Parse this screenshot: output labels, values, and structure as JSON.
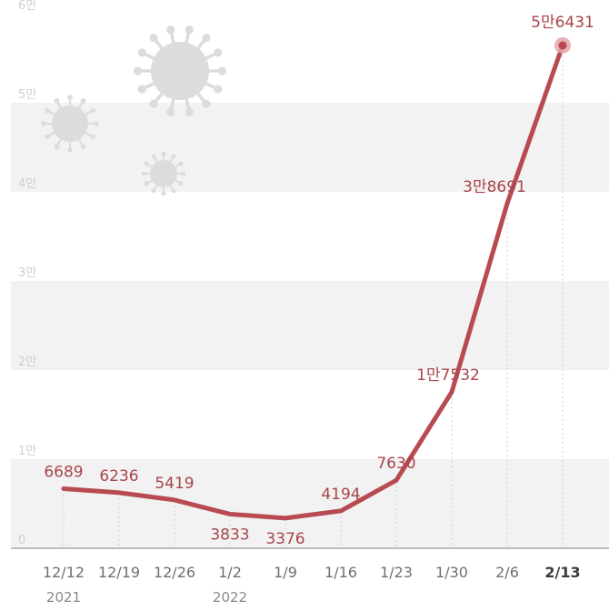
{
  "chart_data": {
    "type": "line",
    "categories": [
      "12/12",
      "12/19",
      "12/26",
      "1/2",
      "1/9",
      "1/16",
      "1/23",
      "1/30",
      "2/6",
      "2/13"
    ],
    "year_labels": [
      "2021",
      "",
      "",
      "2022",
      "",
      "",
      "",
      "",
      "",
      ""
    ],
    "series": [
      {
        "values": [
          6689,
          6236,
          5419,
          3833,
          3376,
          4194,
          7630,
          17532,
          38691,
          56431
        ],
        "labels": [
          "6689",
          "6236",
          "5419",
          "3833",
          "3376",
          "4194",
          "7630",
          "1만7532",
          "3만8691",
          "5만6431"
        ]
      }
    ],
    "ylim": [
      0,
      60000
    ],
    "yticks": [
      0,
      10000,
      20000,
      30000,
      40000,
      50000,
      60000
    ],
    "ytick_labels": [
      "0",
      "1만",
      "2만",
      "3만",
      "4만",
      "5만",
      "6만"
    ],
    "highlight_category": "2/13",
    "grid": "alternating horizontal bands",
    "colors": {
      "line": "#b84a52",
      "label": "#a8444b",
      "band": "#f2f2f2"
    },
    "decoration": "virus-icons"
  }
}
